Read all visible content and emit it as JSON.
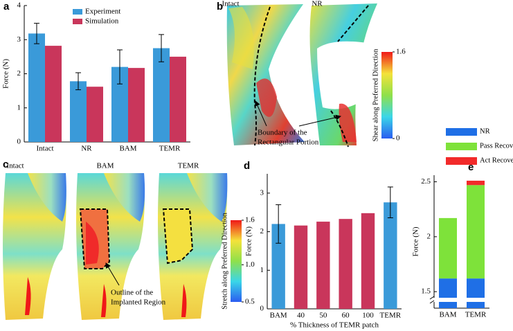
{
  "chart_data": [
    {
      "type": "bar",
      "panel_label": "a",
      "ylabel": "Force (N)",
      "categories": [
        "Intact",
        "NR",
        "BAM",
        "TEMR"
      ],
      "series": [
        {
          "name": "Experiment",
          "color": "#3a9ad9",
          "values": [
            3.18,
            1.78,
            2.2,
            2.75
          ],
          "errors": [
            0.3,
            0.25,
            0.5,
            0.4
          ]
        },
        {
          "name": "Simulation",
          "color": "#c9365b",
          "values": [
            2.82,
            1.62,
            2.17,
            2.5
          ]
        }
      ],
      "ylim": [
        0,
        4
      ],
      "yticks": [
        0,
        1,
        2,
        3,
        4
      ],
      "legend": "upper center"
    },
    {
      "type": "bar",
      "panel_label": "d",
      "ylabel": "Force (N)",
      "xlabel": "% Thickness of TEMR patch",
      "categories": [
        "BAM",
        "40",
        "50",
        "60",
        "100",
        "TEMR"
      ],
      "values": [
        2.2,
        2.16,
        2.26,
        2.33,
        2.48,
        2.76
      ],
      "errors": [
        0.5,
        null,
        null,
        null,
        null,
        0.4
      ],
      "colors": [
        "#3a9ad9",
        "#c9365b",
        "#c9365b",
        "#c9365b",
        "#c9365b",
        "#3a9ad9"
      ],
      "ylim": [
        0,
        3.5
      ],
      "yticks": [
        0,
        1,
        2,
        3
      ]
    },
    {
      "type": "stacked_bar",
      "panel_label": "e",
      "ylabel": "Force (N)",
      "categories": [
        "BAM",
        "TEMR"
      ],
      "series": [
        {
          "name": "NR",
          "color": "#1f6fe6",
          "values": [
            1.62,
            1.62
          ]
        },
        {
          "name": "Pass Recovery",
          "color": "#7ee23a",
          "values": [
            0.55,
            0.85
          ]
        },
        {
          "name": "Act Recovery",
          "color": "#f22a2a",
          "values": [
            0,
            0.04
          ]
        }
      ],
      "ylim": [
        1.35,
        2.56
      ],
      "yticks": [
        1.5,
        2,
        2.5
      ],
      "axis_break": true,
      "legend": "top"
    }
  ],
  "figures": [
    {
      "panel_label": "b",
      "labels": [
        "Intact",
        "NR"
      ],
      "annotation": [
        "Boundary of the",
        "Rectangular Portion"
      ],
      "colorbar": {
        "label": "Shear along Preferred Direction",
        "lim": [
          0,
          1.6
        ],
        "ticks": [
          0,
          1.6
        ]
      }
    },
    {
      "panel_label": "c",
      "labels": [
        "Intact",
        "BAM",
        "TEMR"
      ],
      "annotation": [
        "Outline of the",
        "Implanted Region"
      ],
      "colorbar": {
        "label": "Stretch along Preferred Direction",
        "lim": [
          0.5,
          1.6
        ],
        "ticks": [
          0.5,
          {
            "value": 1,
            "label": "1.0"
          },
          1.6
        ]
      }
    }
  ]
}
